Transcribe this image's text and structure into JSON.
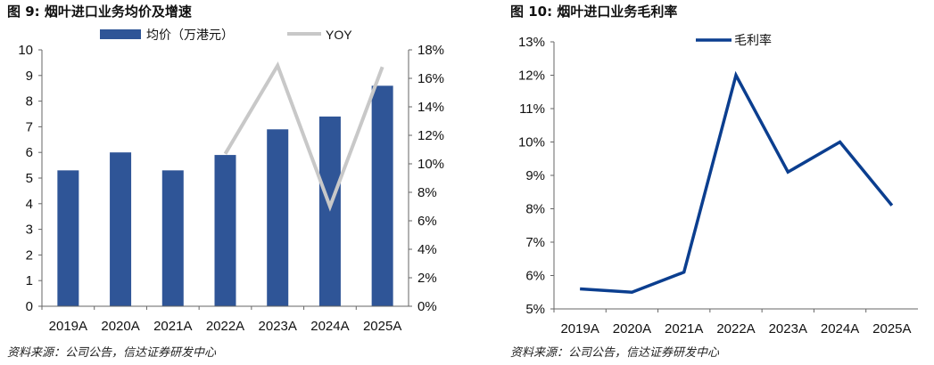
{
  "chart_data": [
    {
      "type": "bar",
      "title": "图  9:  烟叶进口业务均价及增速",
      "categories": [
        "2019A",
        "2020A",
        "2021A",
        "2022A",
        "2023A",
        "2024A",
        "2025A"
      ],
      "series": [
        {
          "name": "均价（万港元）",
          "type": "bar",
          "axis": "left",
          "values": [
            5.3,
            6.0,
            5.3,
            5.9,
            6.9,
            7.4,
            8.6
          ]
        },
        {
          "name": "YOY",
          "type": "line",
          "axis": "right",
          "values": [
            null,
            null,
            null,
            10.7,
            16.9,
            7.0,
            16.8
          ]
        }
      ],
      "ylim_left": [
        0,
        10
      ],
      "yticks_left": [
        "0",
        "1",
        "2",
        "3",
        "4",
        "5",
        "6",
        "7",
        "8",
        "9",
        "10"
      ],
      "ylim_right": [
        0,
        18
      ],
      "yticks_right": [
        "0%",
        "2%",
        "4%",
        "6%",
        "8%",
        "10%",
        "12%",
        "14%",
        "16%",
        "18%"
      ],
      "legend_position": "top",
      "colors": {
        "bar": "#2F5597",
        "line": "#C8C8C8"
      },
      "source": "资料来源：公司公告，信达证券研发中心"
    },
    {
      "type": "line",
      "title": "图  10:  烟叶进口业务毛利率",
      "categories": [
        "2019A",
        "2020A",
        "2021A",
        "2022A",
        "2023A",
        "2024A",
        "2025A"
      ],
      "series": [
        {
          "name": "毛利率",
          "values": [
            5.6,
            5.5,
            6.1,
            12.0,
            9.1,
            10.0,
            8.1
          ]
        }
      ],
      "ylim": [
        5,
        13
      ],
      "yticks": [
        "5%",
        "6%",
        "7%",
        "8%",
        "9%",
        "10%",
        "11%",
        "12%",
        "13%"
      ],
      "legend_position": "top",
      "colors": {
        "line": "#0B3E8F"
      },
      "source": "资料来源：公司公告，信达证券研发中心"
    }
  ]
}
